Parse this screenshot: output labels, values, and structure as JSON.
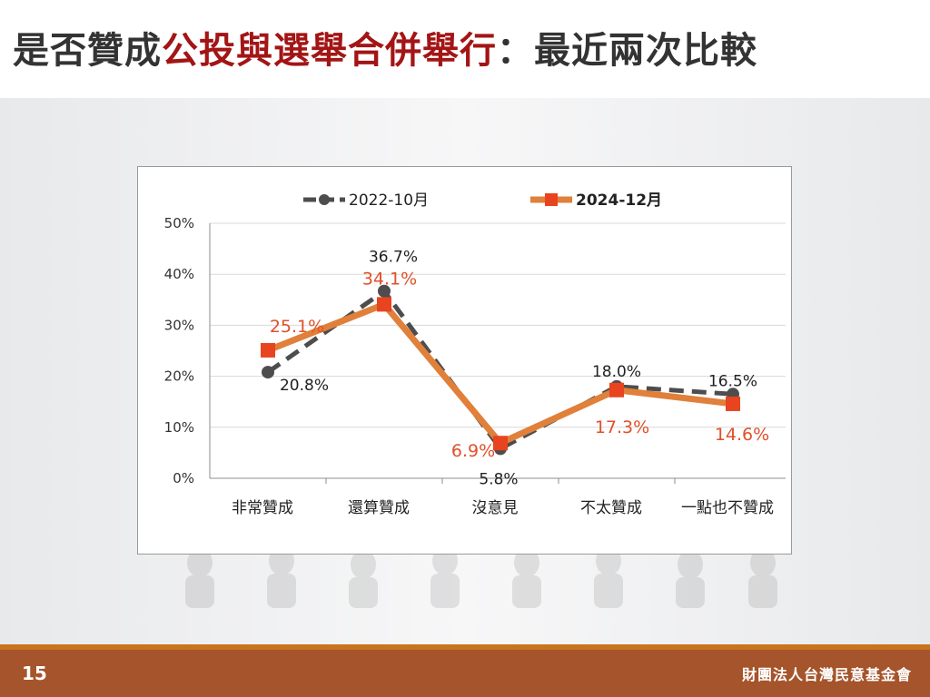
{
  "title": {
    "part1": "是否贊成",
    "highlight": "公投與選舉合併舉行",
    "part2": "：最近兩次比較"
  },
  "footer": {
    "page_number": "15",
    "organization": "財團法人台灣民意基金會"
  },
  "colors": {
    "series_2022": "#4d4d4d",
    "series_2024": "#e0803a",
    "marker_2024": "#e8441f",
    "label_2024": "#e0502a",
    "title_highlight": "#a31515"
  },
  "chart_data": {
    "type": "line",
    "categories": [
      "非常贊成",
      "還算贊成",
      "沒意見",
      "不太贊成",
      "一點也不贊成"
    ],
    "series": [
      {
        "name": "2022-10月",
        "values": [
          20.8,
          36.7,
          5.8,
          18.0,
          16.5
        ],
        "labels": [
          "20.8%",
          "36.7%",
          "5.8%",
          "18.0%",
          "16.5%"
        ],
        "style": "dashed",
        "marker": "circle"
      },
      {
        "name": "2024-12月",
        "values": [
          25.1,
          34.1,
          6.9,
          17.3,
          14.6
        ],
        "labels": [
          "25.1%",
          "34.1%",
          "6.9%",
          "17.3%",
          "14.6%"
        ],
        "style": "solid",
        "marker": "square"
      }
    ],
    "ylim": [
      0,
      50
    ],
    "yticks": [
      "0%",
      "10%",
      "20%",
      "30%",
      "40%",
      "50%"
    ],
    "grid": true,
    "legend_position": "top"
  }
}
